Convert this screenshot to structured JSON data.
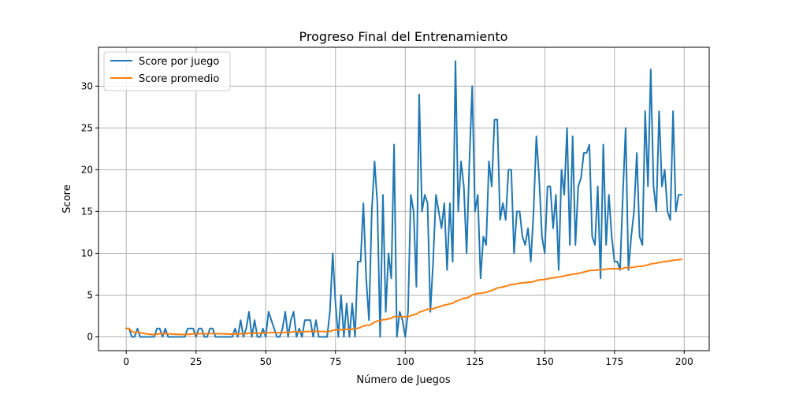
{
  "chart_data": {
    "type": "line",
    "title": "Progreso Final del Entrenamiento",
    "xlabel": "Número de Juegos",
    "ylabel": "Score",
    "xlim": [
      -9.95,
      208.95
    ],
    "ylim": [
      -1.65,
      34.65
    ],
    "xticks": [
      0,
      25,
      50,
      75,
      100,
      125,
      150,
      175,
      200
    ],
    "yticks": [
      0,
      5,
      10,
      15,
      20,
      25,
      30
    ],
    "grid": true,
    "legend_position": "upper left",
    "x": [
      0,
      1,
      2,
      3,
      4,
      5,
      6,
      7,
      8,
      9,
      10,
      11,
      12,
      13,
      14,
      15,
      16,
      17,
      18,
      19,
      20,
      21,
      22,
      23,
      24,
      25,
      26,
      27,
      28,
      29,
      30,
      31,
      32,
      33,
      34,
      35,
      36,
      37,
      38,
      39,
      40,
      41,
      42,
      43,
      44,
      45,
      46,
      47,
      48,
      49,
      50,
      51,
      52,
      53,
      54,
      55,
      56,
      57,
      58,
      59,
      60,
      61,
      62,
      63,
      64,
      65,
      66,
      67,
      68,
      69,
      70,
      71,
      72,
      73,
      74,
      75,
      76,
      77,
      78,
      79,
      80,
      81,
      82,
      83,
      84,
      85,
      86,
      87,
      88,
      89,
      90,
      91,
      92,
      93,
      94,
      95,
      96,
      97,
      98,
      99,
      100,
      101,
      102,
      103,
      104,
      105,
      106,
      107,
      108,
      109,
      110,
      111,
      112,
      113,
      114,
      115,
      116,
      117,
      118,
      119,
      120,
      121,
      122,
      123,
      124,
      125,
      126,
      127,
      128,
      129,
      130,
      131,
      132,
      133,
      134,
      135,
      136,
      137,
      138,
      139,
      140,
      141,
      142,
      143,
      144,
      145,
      146,
      147,
      148,
      149,
      150,
      151,
      152,
      153,
      154,
      155,
      156,
      157,
      158,
      159,
      160,
      161,
      162,
      163,
      164,
      165,
      166,
      167,
      168,
      169,
      170,
      171,
      172,
      173,
      174,
      175,
      176,
      177,
      178,
      179,
      180,
      181,
      182,
      183,
      184,
      185,
      186,
      187,
      188,
      189,
      190,
      191,
      192,
      193,
      194,
      195,
      196,
      197,
      198,
      199
    ],
    "series": [
      {
        "name": "Score por juego",
        "color": "#1f77b4",
        "values": [
          1,
          1,
          0,
          0,
          1,
          0,
          0,
          0,
          0,
          0,
          0,
          1,
          1,
          0,
          1,
          0,
          0,
          0,
          0,
          0,
          0,
          0,
          1,
          1,
          1,
          0,
          1,
          1,
          0,
          0,
          1,
          1,
          0,
          0,
          0,
          0,
          0,
          0,
          0,
          1,
          0,
          2,
          0,
          1,
          3,
          0,
          2,
          0,
          0,
          1,
          0,
          3,
          2,
          1,
          0,
          0,
          1,
          3,
          0,
          2,
          3,
          0,
          1,
          0,
          2,
          2,
          2,
          0,
          2,
          0,
          0,
          0,
          0,
          3,
          10,
          4,
          0,
          5,
          0,
          4,
          0,
          4,
          0,
          9,
          9,
          16,
          7,
          2,
          15,
          21,
          16,
          0,
          17,
          3,
          10,
          7,
          23,
          0,
          3,
          2,
          0,
          3,
          17,
          15,
          6,
          29,
          15,
          17,
          16,
          3,
          9,
          17,
          15,
          13,
          16,
          8,
          16,
          9,
          33,
          15,
          21,
          18,
          10,
          21,
          30,
          15,
          17,
          7,
          12,
          11,
          21,
          18,
          26,
          26,
          14,
          16,
          14,
          20,
          20,
          10,
          15,
          15,
          12,
          11,
          13,
          9,
          15,
          24,
          19,
          12,
          10,
          18,
          18,
          13,
          17,
          8,
          20,
          17,
          25,
          11,
          24,
          11,
          18,
          19,
          22,
          22,
          23,
          12,
          11,
          18,
          7,
          23,
          11,
          17,
          12,
          9,
          9,
          8,
          17,
          25,
          8,
          12,
          15,
          22,
          12,
          11,
          27,
          18,
          32,
          18,
          15,
          27,
          18,
          20,
          15,
          14,
          27,
          15,
          17,
          17
        ]
      },
      {
        "name": "Score promedio",
        "color": "#ff7f0e",
        "values": [
          1,
          1,
          0.67,
          0.5,
          0.6,
          0.5,
          0.43,
          0.38,
          0.33,
          0.3,
          0.27,
          0.33,
          0.38,
          0.36,
          0.4,
          0.38,
          0.35,
          0.33,
          0.32,
          0.3,
          0.29,
          0.27,
          0.3,
          0.33,
          0.36,
          0.35,
          0.37,
          0.39,
          0.38,
          0.37,
          0.39,
          0.41,
          0.39,
          0.38,
          0.37,
          0.36,
          0.35,
          0.34,
          0.33,
          0.35,
          0.34,
          0.38,
          0.37,
          0.39,
          0.44,
          0.43,
          0.46,
          0.45,
          0.44,
          0.46,
          0.45,
          0.5,
          0.52,
          0.52,
          0.51,
          0.5,
          0.51,
          0.55,
          0.54,
          0.57,
          0.61,
          0.6,
          0.6,
          0.59,
          0.61,
          0.64,
          0.66,
          0.65,
          0.67,
          0.66,
          0.65,
          0.64,
          0.63,
          0.66,
          0.78,
          0.83,
          0.82,
          0.87,
          0.86,
          0.91,
          0.9,
          0.94,
          0.93,
          1.03,
          1.13,
          1.31,
          1.38,
          1.39,
          1.54,
          1.76,
          1.92,
          1.9,
          2.06,
          2.07,
          2.17,
          2.22,
          2.44,
          2.41,
          2.42,
          2.42,
          2.4,
          2.4,
          2.54,
          2.66,
          2.7,
          2.95,
          3.06,
          3.19,
          3.31,
          3.31,
          3.37,
          3.49,
          3.6,
          3.68,
          3.81,
          3.85,
          3.96,
          4.01,
          4.26,
          4.35,
          4.5,
          4.61,
          4.66,
          4.79,
          5.02,
          5.1,
          5.2,
          5.21,
          5.28,
          5.33,
          5.45,
          5.55,
          5.7,
          5.85,
          5.91,
          5.99,
          6.05,
          6.16,
          6.26,
          6.29,
          6.36,
          6.42,
          6.46,
          6.49,
          6.53,
          6.55,
          6.61,
          6.73,
          6.81,
          6.85,
          6.87,
          6.95,
          7.02,
          7.06,
          7.13,
          7.14,
          7.22,
          7.28,
          7.39,
          7.41,
          7.51,
          7.53,
          7.6,
          7.67,
          7.76,
          7.84,
          7.93,
          7.95,
          7.97,
          8.03,
          8.0,
          8.09,
          8.1,
          8.15,
          8.17,
          8.16,
          8.15,
          8.14,
          8.19,
          8.29,
          8.29,
          8.3,
          8.34,
          8.42,
          8.44,
          8.45,
          8.55,
          8.6,
          8.73,
          8.78,
          8.81,
          8.91,
          8.96,
          9.02,
          9.05,
          9.08,
          9.17,
          9.2,
          9.24,
          9.27
        ]
      }
    ]
  }
}
